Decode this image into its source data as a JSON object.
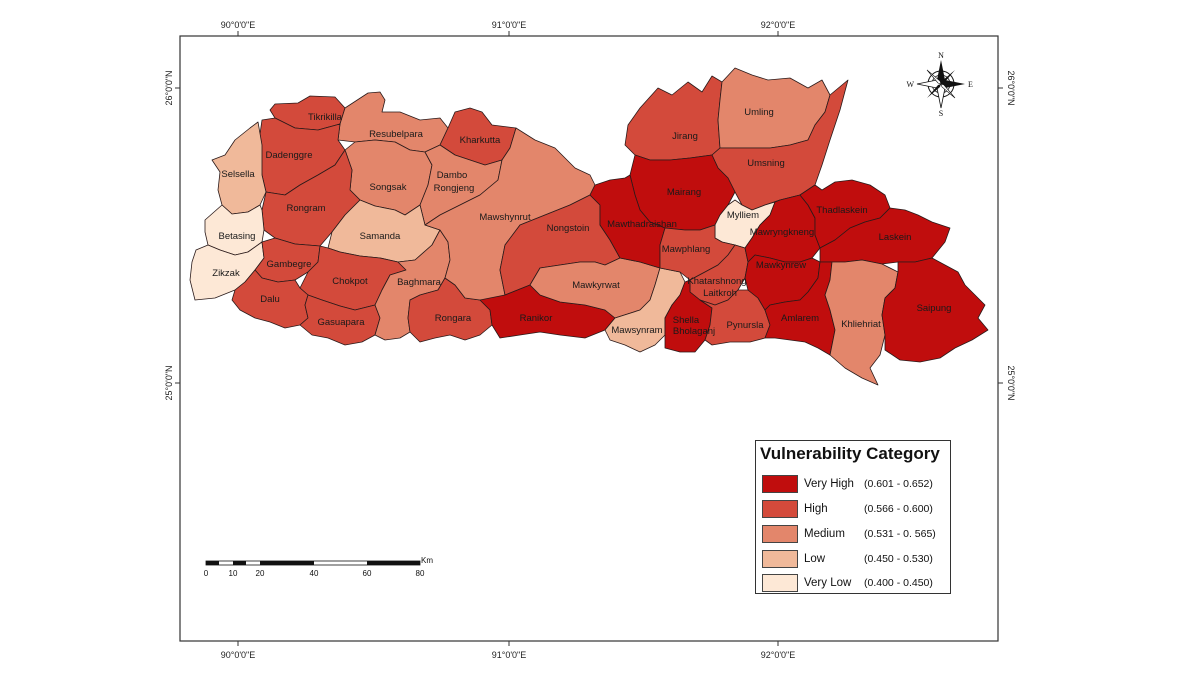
{
  "graticule": {
    "top": [
      "90°0'0\"E",
      "91°0'0\"E",
      "92°0'0\"E"
    ],
    "bottom": [
      "90°0'0\"E",
      "91°0'0\"E",
      "92°0'0\"E"
    ],
    "left": [
      "26°0'0\"N",
      "25°0'0\"N"
    ],
    "right": [
      "26°0'0\"N",
      "25°0'0\"N"
    ]
  },
  "compass": {
    "n": "N",
    "s": "S",
    "e": "E",
    "w": "W"
  },
  "legend": {
    "title": "Vulnerability Category",
    "items": [
      {
        "label": "Very High",
        "range": "(0.601 - 0.652)",
        "color": "#c00d0d"
      },
      {
        "label": "High",
        "range": "(0.566 - 0.600)",
        "color": "#d34a3b"
      },
      {
        "label": "Medium",
        "range": "(0.531 - 0. 565)",
        "color": "#e3866b"
      },
      {
        "label": "Low",
        "range": "(0.450 - 0.530)",
        "color": "#f0b99a"
      },
      {
        "label": "Very Low",
        "range": "(0.400 - 0.450)",
        "color": "#fde8d6"
      }
    ]
  },
  "scalebar": {
    "ticks": [
      "0",
      "10",
      "20",
      "40",
      "60",
      "80"
    ],
    "unit": "Km"
  },
  "districts": {
    "Tikrikilla": "High",
    "Resubelpara": "Medium",
    "Kharkutta": "High",
    "Dadenggre": "High",
    "Selsella": "Low",
    "Songsak": "Medium",
    "Dambo Rongjeng": "Medium",
    "Rongram": "High",
    "Betasing": "Very Low",
    "Samanda": "Low",
    "Zikzak": "Very Low",
    "Gambegre": "High",
    "Chokpot": "High",
    "Dalu": "High",
    "Gasuapara": "High",
    "Baghmara": "Medium",
    "Rongara": "High",
    "Mawshynrut": "Medium",
    "Nongstoin": "High",
    "Ranikor": "Very High",
    "Mawkyrwat": "Medium",
    "Mawsynram": "Low",
    "Jirang": "High",
    "Umling": "Medium",
    "Umsning": "High",
    "Mairang": "Very High",
    "Mawthadraishan": "Very High",
    "Mylliem": "Very Low",
    "Mawphlang": "High",
    "Khatarshnong Laitkroh": "High",
    "Shella Bholaganj": "Very High",
    "Pynursla": "High",
    "Mawryngkneng": "Very High",
    "Mawkynrew": "Very High",
    "Thadlaskein": "Very High",
    "Laskein": "Very High",
    "Amlarem": "Very High",
    "Khliehriat": "Medium",
    "Saipung": "Very High"
  }
}
